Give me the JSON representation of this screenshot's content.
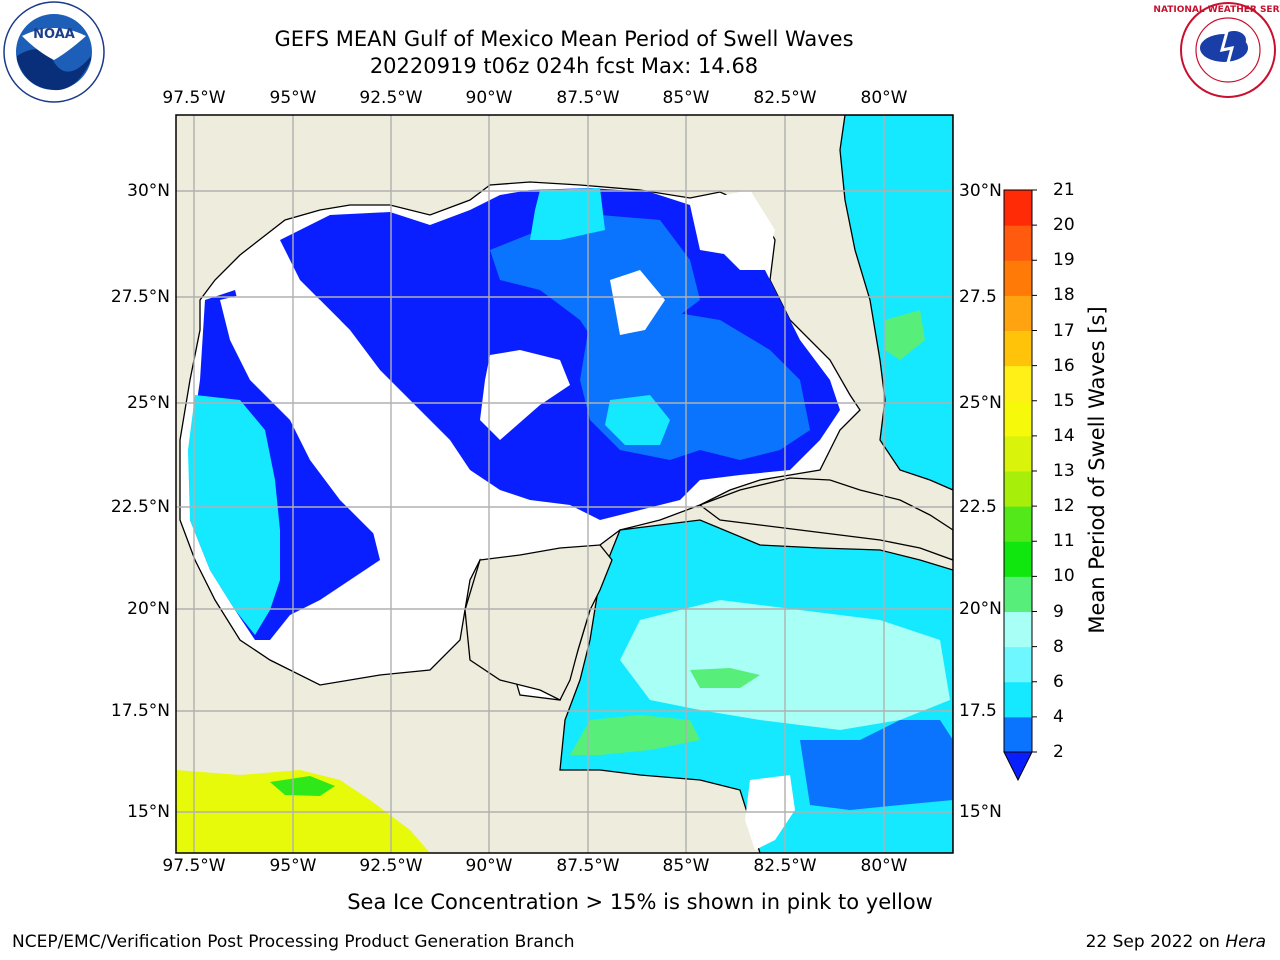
{
  "title": {
    "line1": "GEFS MEAN Gulf of Mexico Mean Period of Swell Waves",
    "line2": "20220919 t06z 024h fcst   Max: 14.68"
  },
  "axes": {
    "lon_labels": [
      "97.5°W",
      "95°W",
      "92.5°W",
      "90°W",
      "87.5°W",
      "85°W",
      "82.5°W",
      "80°W"
    ],
    "lat_labels_left": [
      "30°N",
      "27.5°N",
      "25°N",
      "22.5°N",
      "20°N",
      "17.5°N",
      "15°N"
    ],
    "lat_labels_right": [
      "30°N",
      "27.5",
      "25°N",
      "22.5",
      "20°N",
      "17.5",
      "15°N"
    ]
  },
  "colorbar": {
    "label": "Mean Period of Swell Waves [s]",
    "ticks": [
      "2",
      "4",
      "6",
      "8",
      "9",
      "10",
      "11",
      "12",
      "13",
      "14",
      "15",
      "16",
      "17",
      "18",
      "19",
      "20",
      "21"
    ],
    "colors": [
      "#0a74ff",
      "#14e9ff",
      "#6ff7ff",
      "#a8fff6",
      "#57ef79",
      "#0fe70f",
      "#52e81a",
      "#a8ee0b",
      "#d9f30a",
      "#f7f90a",
      "#fff018",
      "#ffc30a",
      "#ffa310",
      "#ff7a06",
      "#ff5a0e",
      "#ff2a06"
    ],
    "under_color": "#0a1fff"
  },
  "note": "Sea Ice Concentration > 15% is shown in pink to yellow",
  "footer": {
    "left": "NCEP/EMC/Verification Post Processing Product Generation Branch",
    "date": "22 Sep 2022 on ",
    "host": "Hera"
  },
  "logos": {
    "left": "noaa-logo",
    "right": "nws-logo",
    "noaa_text": "NOAA",
    "nws_text": "NATIONAL WEATHER SERVICE"
  },
  "map_colors": {
    "land": "#eeecdc",
    "no_data": "#ffffff",
    "grid": "#b0b0b0",
    "coast": "#000000"
  }
}
